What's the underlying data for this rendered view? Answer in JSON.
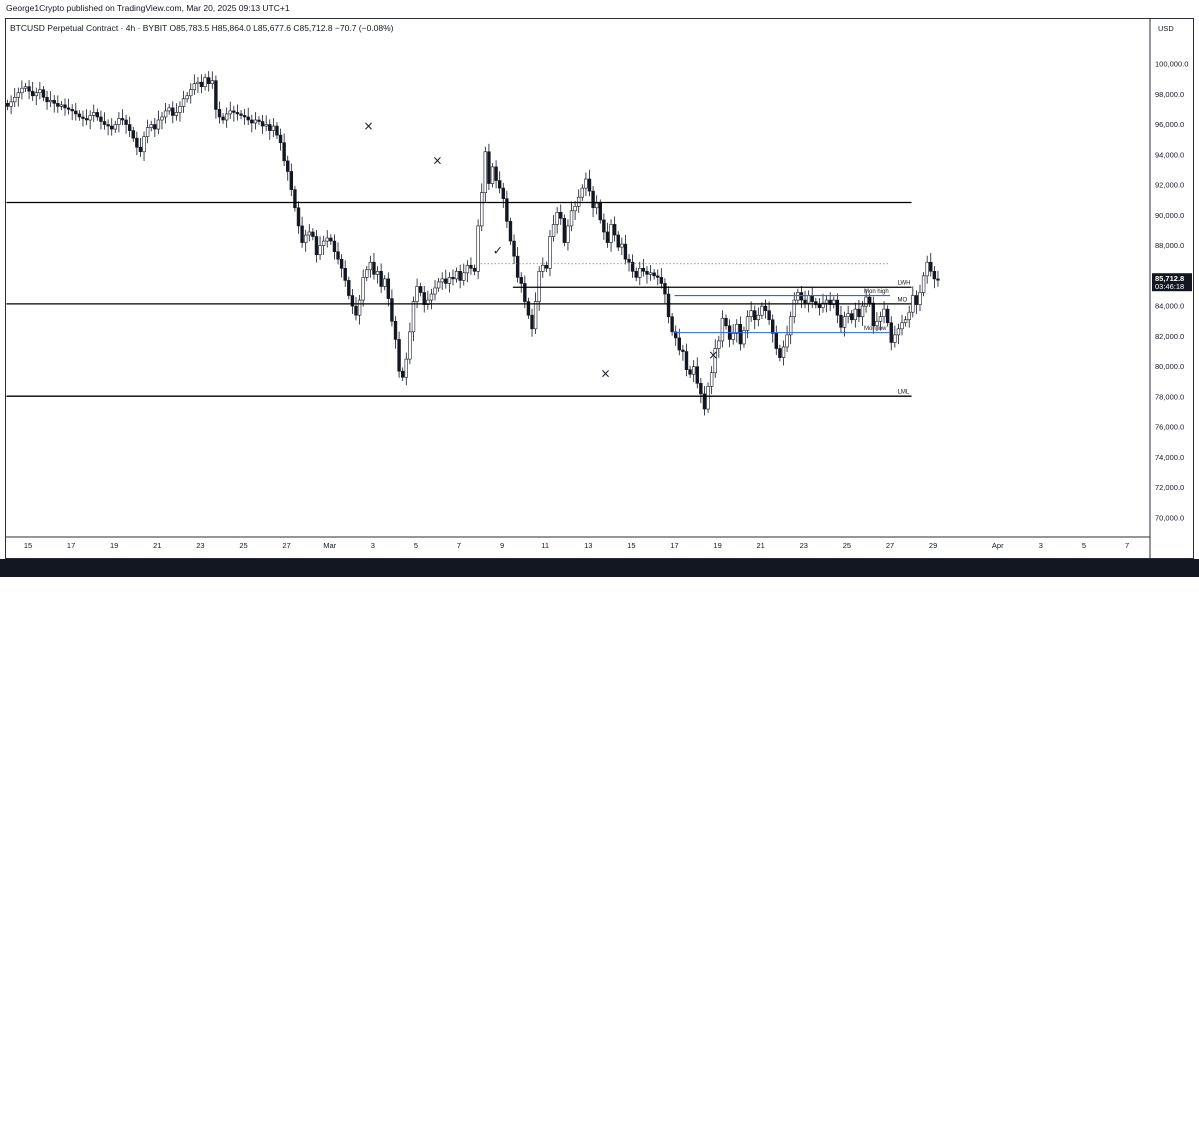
{
  "header": {
    "publisher": "George1Crypto published on TradingView.com, Mar 20, 2025 09:13 UTC+1",
    "symbol_line": "BTCUSD Perpetual Contract · 4h · BYBIT  O85,783.5  H85,864.0  L85,677.6  C85,712.8  −70.7 (−0.08%)"
  },
  "footer": {
    "brand": "TradingView"
  },
  "colors": {
    "candle": "#131722",
    "level_line": "#000000",
    "blue_level": "#2962ff",
    "price_badge": "#131722"
  },
  "chart_data": {
    "type": "candlestick",
    "currency": "USD",
    "y_ticks": [
      70000,
      72000,
      74000,
      76000,
      78000,
      80000,
      82000,
      84000,
      86000,
      88000,
      90000,
      92000,
      94000,
      96000,
      98000,
      100000
    ],
    "y_tick_labels": [
      "70,000.0",
      "72,000.0",
      "74,000.0",
      "76,000.0",
      "78,000.0",
      "80,000.0",
      "82,000.0",
      "84,000.0",
      "86,000.0",
      "88,000.0",
      "90,000.0",
      "92,000.0",
      "94,000.0",
      "96,000.0",
      "98,000.0",
      "100,000.0"
    ],
    "ylim": [
      69200,
      103200
    ],
    "x_ticks": [
      "15",
      "17",
      "19",
      "21",
      "23",
      "25",
      "27",
      "Mar",
      "3",
      "5",
      "7",
      "9",
      "11",
      "13",
      "15",
      "17",
      "19",
      "21",
      "23",
      "25",
      "27",
      "29",
      "Apr",
      "3",
      "5",
      "7"
    ],
    "current_price": {
      "value": 85712.8,
      "label": "85,712.8",
      "countdown": "03:46:18"
    },
    "levels": [
      {
        "label": "",
        "value": 90850,
        "color": "#000000",
        "from": "14",
        "to": "28"
      },
      {
        "label": "LWH",
        "value": 85250,
        "color": "#000000",
        "from": "9.5",
        "to": "28"
      },
      {
        "label": "Mon high",
        "value": 84700,
        "color": "#2962ff",
        "from": "17",
        "to": "27"
      },
      {
        "label": "MO",
        "value": 84150,
        "color": "#000000",
        "from": "14",
        "to": "28"
      },
      {
        "label": "Mon low",
        "value": 82250,
        "color": "#2962ff",
        "from": "17",
        "to": "27"
      },
      {
        "label": "LML",
        "value": 78050,
        "color": "#000000",
        "from": "14",
        "to": "28"
      }
    ],
    "dotted_line": {
      "value": 86800,
      "from": "8",
      "to": "27"
    },
    "closes_4h": [
      97200,
      97500,
      97800,
      98100,
      98400,
      98500,
      98200,
      97900,
      98100,
      98300,
      97800,
      97500,
      97600,
      97400,
      97200,
      97300,
      97100,
      97000,
      96900,
      96700,
      96500,
      96400,
      96300,
      96600,
      96800,
      96500,
      96200,
      96000,
      95900,
      95700,
      96000,
      96400,
      96300,
      96000,
      95600,
      95100,
      94500,
      94200,
      95200,
      95800,
      96000,
      95700,
      96300,
      96500,
      96900,
      97100,
      96600,
      96800,
      97200,
      97700,
      97900,
      98300,
      98700,
      98800,
      98500,
      99100,
      98700,
      98900,
      97000,
      96500,
      96300,
      96700,
      96900,
      96800,
      96700,
      96600,
      96500,
      96300,
      96100,
      96300,
      96200,
      95900,
      96000,
      95600,
      95900,
      95300,
      94800,
      93600,
      92900,
      91700,
      90500,
      89300,
      88200,
      88700,
      88900,
      88600,
      87400,
      88000,
      88300,
      88500,
      88300,
      87600,
      87100,
      86500,
      85700,
      84700,
      84000,
      83400,
      84400,
      85900,
      86400,
      86900,
      86100,
      86300,
      85300,
      85800,
      84500,
      83000,
      81800,
      79700,
      79300,
      80500,
      82300,
      84300,
      85300,
      84900,
      84100,
      84400,
      84800,
      85200,
      85600,
      85800,
      85500,
      85900,
      85800,
      86300,
      85700,
      86200,
      86700,
      86500,
      86300,
      89300,
      91500,
      94200,
      92100,
      93200,
      92300,
      91800,
      91100,
      89600,
      88300,
      87300,
      85900,
      85500,
      84300,
      83400,
      82500,
      84300,
      86300,
      86700,
      86500,
      88600,
      89400,
      90200,
      89800,
      88200,
      89300,
      90300,
      90600,
      91200,
      91800,
      92400,
      91600,
      90500,
      90800,
      89700,
      88900,
      88200,
      89400,
      88700,
      87900,
      88100,
      87100,
      86900,
      86300,
      85900,
      86500,
      86300,
      86100,
      86200,
      86000,
      85900,
      85500,
      84800,
      83300,
      82300,
      81900,
      81100,
      81000,
      79800,
      79500,
      80000,
      78900,
      78200,
      77200,
      78700,
      79600,
      81200,
      81700,
      83200,
      82700,
      81800,
      82200,
      82800,
      81500,
      82400,
      83300,
      83700,
      83100,
      83400,
      84000,
      83700,
      83100,
      82200,
      81200,
      80600,
      81300,
      82100,
      83300,
      84400,
      84900,
      84400,
      84200,
      84700,
      84300,
      84100,
      83900,
      84200,
      84400,
      84100,
      84400,
      83400,
      82600,
      83300,
      83500,
      83100,
      83800,
      83300,
      84000,
      84600,
      84200,
      82700,
      83000,
      83300,
      83800,
      82900,
      81600,
      82100,
      82500,
      82900,
      83100,
      83600,
      84700,
      84100,
      84900,
      86000,
      86900,
      86300,
      85800,
      85712.8
    ],
    "x_range": [
      14,
      39
    ],
    "first_candle_t": 14.02,
    "candle_step": 0.1667,
    "marks": [
      {
        "symbol": "×",
        "t": "2.8",
        "value": 95650
      },
      {
        "symbol": "×",
        "t": "6",
        "value": 93350
      },
      {
        "symbol": "✓",
        "t": "8.8",
        "value": 87400
      },
      {
        "symbol": "×",
        "t": "13.8",
        "value": 79300
      },
      {
        "symbol": "×",
        "t": "18.8",
        "value": 80500
      }
    ]
  }
}
